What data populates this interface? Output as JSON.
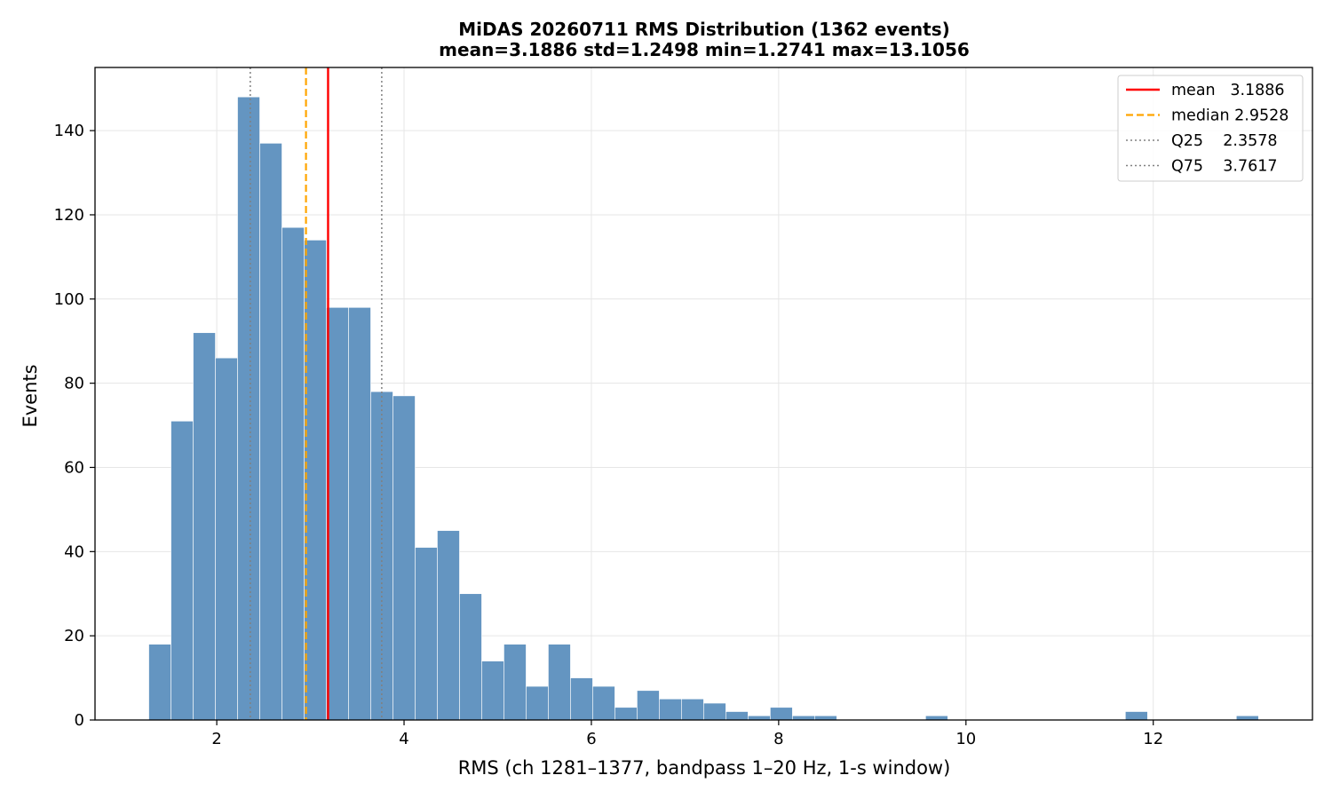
{
  "chart_data": {
    "type": "bar",
    "title": "MiDAS 20260711  RMS Distribution  (1362 events)",
    "subtitle": "mean=3.1886  std=1.2498  min=1.2741  max=13.1056",
    "xlabel": "RMS  (ch 1281–1377, bandpass 1–20 Hz, 1-s window)",
    "ylabel": "Events",
    "xlim": [
      0.7,
      13.7
    ],
    "ylim": [
      0,
      155
    ],
    "xticks": [
      2,
      4,
      6,
      8,
      10,
      12
    ],
    "yticks": [
      0,
      20,
      40,
      60,
      80,
      100,
      120,
      140
    ],
    "grid": true,
    "bar_color": "#6495c1",
    "bin_edges": [
      1.2741,
      1.5111,
      1.7481,
      1.9851,
      2.2221,
      2.4591,
      2.6961,
      2.9331,
      3.1701,
      3.4071,
      3.6441,
      3.8811,
      4.1181,
      4.3551,
      4.5921,
      4.8291,
      5.0661,
      5.3031,
      5.5401,
      5.7771,
      6.0141,
      6.2511,
      6.4881,
      6.7251,
      6.9621,
      7.1991,
      7.4361,
      7.6731,
      7.9101,
      8.1471,
      8.3841,
      8.6211,
      8.8581,
      9.0951,
      9.3321,
      9.5691,
      9.8061,
      10.0431,
      10.2801,
      10.5171,
      10.7541,
      10.9911,
      11.2281,
      11.4651,
      11.7021,
      11.9391,
      12.1761,
      12.4131,
      12.6501,
      12.8871,
      13.1241
    ],
    "counts": [
      18,
      71,
      92,
      86,
      148,
      137,
      117,
      114,
      98,
      98,
      78,
      77,
      41,
      45,
      30,
      14,
      18,
      8,
      18,
      10,
      8,
      3,
      7,
      5,
      5,
      4,
      2,
      1,
      3,
      1,
      1,
      0,
      0,
      0,
      0,
      1,
      0,
      0,
      0,
      0,
      0,
      0,
      0,
      0,
      2,
      0,
      0,
      0,
      0,
      1
    ],
    "reference_lines": [
      {
        "name": "mean",
        "value": 3.1886,
        "color": "#ff0000",
        "style": "solid"
      },
      {
        "name": "median",
        "value": 2.9528,
        "color": "#ffa500",
        "style": "dashed"
      },
      {
        "name": "Q25",
        "value": 2.3578,
        "color": "#808080",
        "style": "dotted"
      },
      {
        "name": "Q75",
        "value": 3.7617,
        "color": "#808080",
        "style": "dotted"
      }
    ],
    "legend": {
      "placement": "top-right",
      "entries": [
        {
          "label": "mean   3.1886",
          "color": "#ff0000",
          "style": "solid"
        },
        {
          "label": "median 2.9528",
          "color": "#ffa500",
          "style": "dashed"
        },
        {
          "label": "Q25    2.3578",
          "color": "#808080",
          "style": "dotted"
        },
        {
          "label": "Q75    3.7617",
          "color": "#808080",
          "style": "dotted"
        }
      ]
    }
  }
}
